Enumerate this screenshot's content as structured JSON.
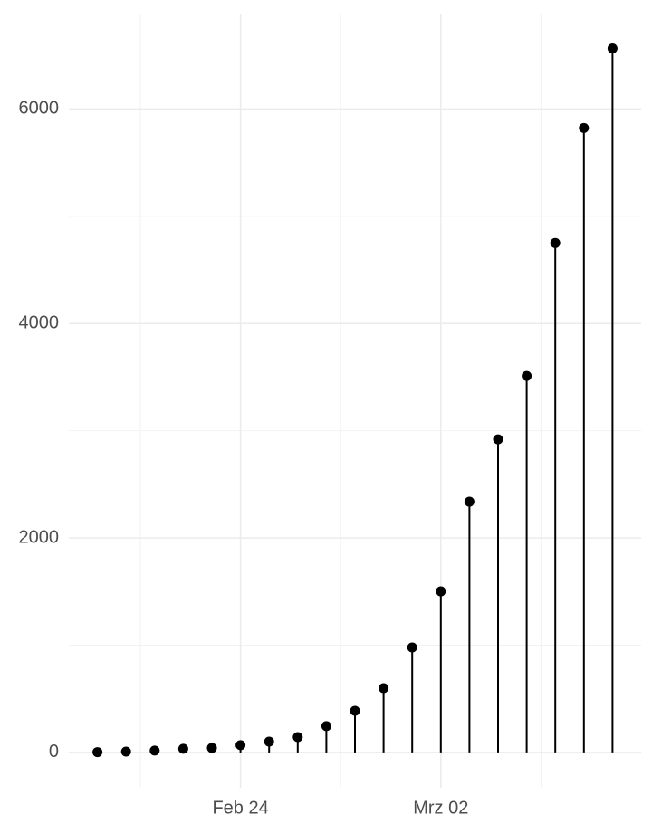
{
  "chart_data": {
    "type": "lollipop",
    "x": [
      "02-19",
      "02-20",
      "02-21",
      "02-22",
      "02-23",
      "02-24",
      "02-25",
      "02-26",
      "02-27",
      "02-28",
      "02-29",
      "03-01",
      "03-02",
      "03-03",
      "03-04",
      "03-05",
      "03-06",
      "03-07",
      "03-08"
    ],
    "values": [
      3,
      8,
      17,
      34,
      42,
      68,
      101,
      143,
      245,
      388,
      599,
      979,
      1502,
      2338,
      2920,
      3511,
      4751,
      5823,
      6565
    ],
    "color": "#000000",
    "xlim": [
      "02-18",
      "03-09"
    ],
    "xticks": [
      {
        "value": "02-24",
        "label": "Feb 24"
      },
      {
        "value": "03-02",
        "label": "Mrz 02"
      }
    ],
    "ylim": [
      -330,
      6890
    ],
    "yticks": [
      0,
      2000,
      4000,
      6000
    ],
    "grid": true
  }
}
